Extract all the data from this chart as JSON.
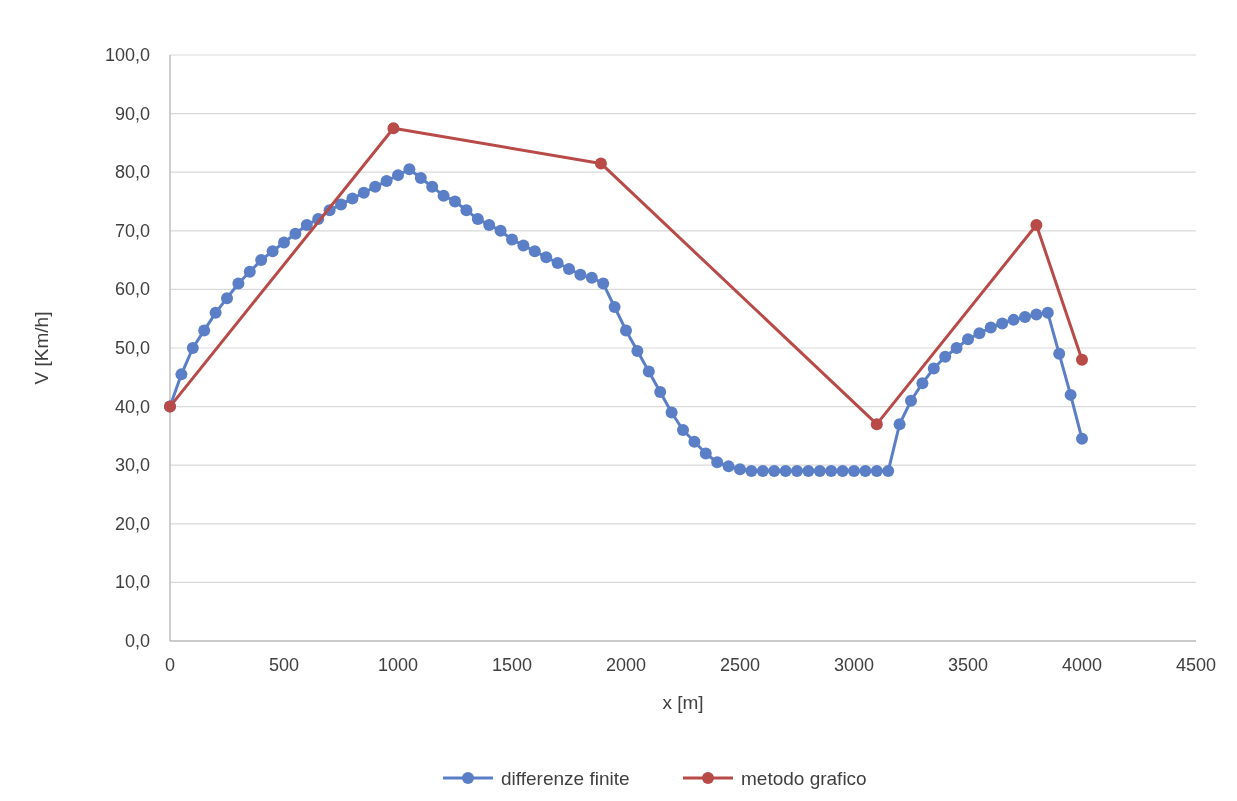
{
  "chart_data": {
    "type": "line",
    "xlabel": "x [m]",
    "ylabel": "V [Km/h]",
    "xlim": [
      0,
      4500
    ],
    "xticks": [
      0,
      500,
      1000,
      1500,
      2000,
      2500,
      3000,
      3500,
      4000,
      4500
    ],
    "ylim": [
      0,
      100
    ],
    "yticks": [
      {
        "value": 0,
        "label": "0,0"
      },
      {
        "value": 10,
        "label": "10,0"
      },
      {
        "value": 20,
        "label": "20,0"
      },
      {
        "value": 30,
        "label": "30,0"
      },
      {
        "value": 40,
        "label": "40,0"
      },
      {
        "value": 50,
        "label": "50,0"
      },
      {
        "value": 60,
        "label": "60,0"
      },
      {
        "value": 70,
        "label": "70,0"
      },
      {
        "value": 80,
        "label": "80,0"
      },
      {
        "value": 90,
        "label": "90,0"
      },
      {
        "value": 100,
        "label": "100,0"
      }
    ],
    "grid": "y",
    "legend": "bottom",
    "marker": "circle",
    "series": [
      {
        "name": "differenze finite",
        "color": "#5b7fc7",
        "x": [
          0,
          50,
          100,
          150,
          200,
          250,
          300,
          350,
          400,
          450,
          500,
          550,
          600,
          650,
          700,
          750,
          800,
          850,
          900,
          950,
          1000,
          1050,
          1100,
          1150,
          1200,
          1250,
          1300,
          1350,
          1400,
          1450,
          1500,
          1550,
          1600,
          1650,
          1700,
          1750,
          1800,
          1850,
          1900,
          1950,
          2000,
          2050,
          2100,
          2150,
          2200,
          2250,
          2300,
          2350,
          2400,
          2450,
          2500,
          2550,
          2600,
          2650,
          2700,
          2750,
          2800,
          2850,
          2900,
          2950,
          3000,
          3050,
          3100,
          3150,
          3200,
          3250,
          3300,
          3350,
          3400,
          3450,
          3500,
          3550,
          3600,
          3650,
          3700,
          3750,
          3800,
          3850,
          3900,
          3950,
          4000
        ],
        "values": [
          40,
          45.5,
          50,
          53,
          56,
          58.5,
          61,
          63,
          65,
          66.5,
          68,
          69.5,
          71,
          72,
          73.5,
          74.5,
          75.5,
          76.5,
          77.5,
          78.5,
          79.5,
          80.5,
          79,
          77.5,
          76,
          75,
          73.5,
          72,
          71,
          70,
          68.5,
          67.5,
          66.5,
          65.5,
          64.5,
          63.5,
          62.5,
          62,
          61,
          57,
          53,
          49.5,
          46,
          42.5,
          39,
          36,
          34,
          32,
          30.5,
          29.8,
          29.3,
          29,
          29,
          29,
          29,
          29,
          29,
          29,
          29,
          29,
          29,
          29,
          29,
          29,
          37,
          41,
          44,
          46.5,
          48.5,
          50,
          51.5,
          52.5,
          53.5,
          54.2,
          54.8,
          55.3,
          55.7,
          56,
          49,
          42,
          34.5
        ]
      },
      {
        "name": "metodo grafico",
        "color": "#b84a48",
        "x": [
          0,
          980,
          1890,
          3100,
          3800,
          4000
        ],
        "values": [
          40,
          87.5,
          81.5,
          37,
          71,
          48
        ]
      }
    ]
  }
}
